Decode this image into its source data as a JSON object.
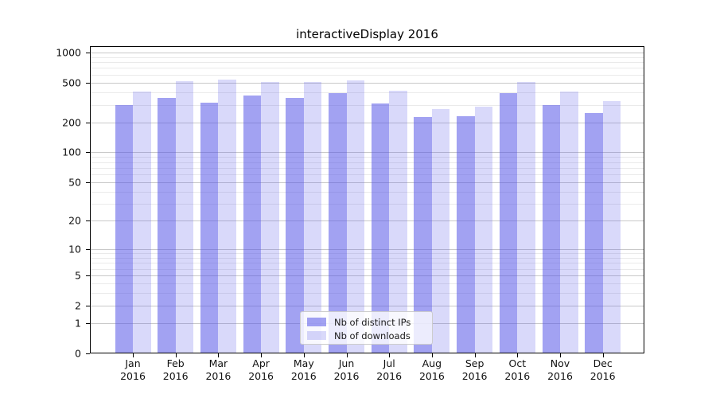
{
  "chart_data": {
    "type": "bar",
    "title": "interactiveDisplay 2016",
    "categories": [
      "Jan",
      "Feb",
      "Mar",
      "Apr",
      "May",
      "Jun",
      "Jul",
      "Aug",
      "Sep",
      "Oct",
      "Nov",
      "Dec"
    ],
    "category_year": "2016",
    "series": [
      {
        "name": "Nb of distinct IPs",
        "color": "rgba(80,80,230,0.53)",
        "values": [
          300,
          350,
          315,
          375,
          355,
          390,
          310,
          225,
          230,
          390,
          300,
          250
        ]
      },
      {
        "name": "Nb of downloads",
        "color": "rgba(80,80,230,0.22)",
        "values": [
          410,
          520,
          540,
          510,
          505,
          530,
          415,
          270,
          290,
          505,
          405,
          325
        ]
      }
    ],
    "y_scale": "log1p",
    "y_max": 1155,
    "y_ticks": [
      0,
      1,
      2,
      5,
      10,
      20,
      50,
      100,
      200,
      500,
      1000
    ],
    "y_minor_gridlines": [
      3,
      4,
      6,
      7,
      8,
      9,
      30,
      40,
      60,
      70,
      80,
      90,
      300,
      400,
      600,
      700,
      800,
      900
    ],
    "grid": true,
    "legend_position": "lower-center-inside",
    "colors": {
      "major_grid": "#c9c9c9",
      "minor_grid": "#eaeaea",
      "axis": "#000000",
      "text": "#111111",
      "legend_border": "#cccccc",
      "legend_bg": "rgba(255,255,255,0.8)"
    }
  }
}
